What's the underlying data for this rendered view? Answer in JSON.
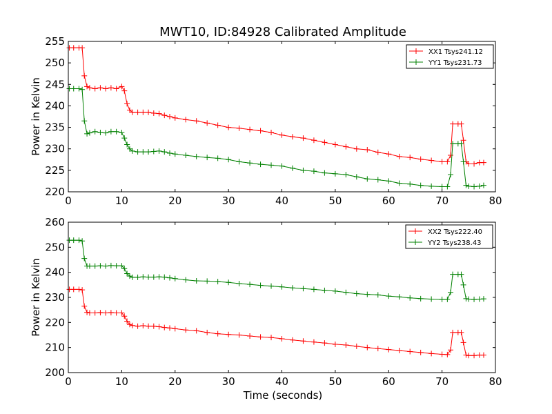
{
  "chart_data": [
    {
      "type": "line",
      "title": "MWT10, ID:84928 Calibrated Amplitude",
      "xlabel": "",
      "ylabel": "Power in Kelvin",
      "xlim": [
        0,
        80
      ],
      "ylim": [
        220,
        255
      ],
      "xticks": [
        "0",
        "10",
        "20",
        "30",
        "40",
        "50",
        "60",
        "70",
        "80"
      ],
      "yticks": [
        "220",
        "225",
        "230",
        "235",
        "240",
        "245",
        "250",
        "255"
      ],
      "legend": "top-right",
      "grid": false,
      "series": [
        {
          "name": "XX1 Tsys241.12",
          "color": "#ff0000",
          "marker": "plus",
          "x": [
            0.2,
            1,
            2,
            2.6,
            3,
            3.5,
            4,
            5,
            6,
            7,
            8,
            9,
            10,
            10.5,
            11,
            11.5,
            12,
            13,
            14,
            15,
            16,
            17,
            18,
            19,
            20,
            22,
            24,
            26,
            28,
            30,
            32,
            34,
            36,
            38,
            40,
            42,
            44,
            46,
            48,
            50,
            52,
            54,
            56,
            58,
            60,
            62,
            64,
            66,
            68,
            70,
            71,
            71.6,
            72,
            73,
            73.6,
            74,
            74.5,
            75,
            76,
            77,
            77.8
          ],
          "y": [
            253.5,
            253.5,
            253.5,
            253.5,
            247,
            244.5,
            244.2,
            244,
            244.2,
            244,
            244.2,
            244,
            244.5,
            243.5,
            240.5,
            239,
            238.5,
            238.5,
            238.5,
            238.5,
            238.3,
            238.2,
            237.8,
            237.5,
            237.2,
            236.8,
            236.5,
            236,
            235.5,
            235,
            234.8,
            234.5,
            234.2,
            233.8,
            233.2,
            232.8,
            232.5,
            232,
            231.5,
            231,
            230.5,
            230,
            229.8,
            229.2,
            228.8,
            228.2,
            228,
            227.6,
            227.3,
            227,
            227,
            228.5,
            235.8,
            235.8,
            235.8,
            232,
            227,
            226.5,
            226.5,
            226.8,
            226.8
          ]
        },
        {
          "name": "YY1 Tsys231.73",
          "color": "#008000",
          "marker": "plus",
          "x": [
            0.2,
            1,
            2,
            2.6,
            3,
            3.5,
            4,
            5,
            6,
            7,
            8,
            9,
            10,
            10.5,
            11,
            11.5,
            12,
            13,
            14,
            15,
            16,
            17,
            18,
            19,
            20,
            22,
            24,
            26,
            28,
            30,
            32,
            34,
            36,
            38,
            40,
            42,
            44,
            46,
            48,
            50,
            52,
            54,
            56,
            58,
            60,
            62,
            64,
            66,
            68,
            70,
            71,
            71.6,
            72,
            73,
            73.6,
            74,
            74.5,
            75,
            76,
            77,
            77.8
          ],
          "y": [
            244,
            244,
            244,
            243.8,
            236.5,
            233.5,
            233.7,
            234,
            233.8,
            233.7,
            234,
            234,
            233.8,
            232.5,
            231,
            230,
            229.5,
            229.3,
            229.3,
            229.3,
            229.4,
            229.5,
            229.3,
            229,
            228.8,
            228.5,
            228.2,
            228,
            227.8,
            227.5,
            227,
            226.7,
            226.4,
            226.2,
            226,
            225.5,
            225,
            224.8,
            224.4,
            224.2,
            224,
            223.5,
            223,
            222.8,
            222.5,
            222,
            221.8,
            221.5,
            221.3,
            221.2,
            221.2,
            224,
            231.2,
            231.2,
            231.2,
            227,
            221.5,
            221.3,
            221.2,
            221.3,
            221.5
          ]
        }
      ]
    },
    {
      "type": "line",
      "title": "",
      "xlabel": "Time (seconds)",
      "ylabel": "Power in Kelvin",
      "xlim": [
        0,
        80
      ],
      "ylim": [
        200,
        260
      ],
      "xticks": [
        "0",
        "10",
        "20",
        "30",
        "40",
        "50",
        "60",
        "70",
        "80"
      ],
      "yticks": [
        "200",
        "210",
        "220",
        "230",
        "240",
        "250",
        "260"
      ],
      "legend": "top-right",
      "grid": false,
      "series": [
        {
          "name": "XX2 Tsys222.40",
          "color": "#ff0000",
          "marker": "plus",
          "x": [
            0.2,
            1,
            2,
            2.6,
            3,
            3.5,
            4,
            5,
            6,
            7,
            8,
            9,
            10,
            10.5,
            11,
            11.5,
            12,
            13,
            14,
            15,
            16,
            17,
            18,
            19,
            20,
            22,
            24,
            26,
            28,
            30,
            32,
            34,
            36,
            38,
            40,
            42,
            44,
            46,
            48,
            50,
            52,
            54,
            56,
            58,
            60,
            62,
            64,
            66,
            68,
            70,
            71,
            71.6,
            72,
            73,
            73.6,
            74,
            74.5,
            75,
            76,
            77,
            77.8
          ],
          "y": [
            233.2,
            233.2,
            233.2,
            233,
            226.5,
            224,
            223.8,
            223.8,
            223.9,
            223.8,
            223.9,
            223.8,
            223.8,
            222.5,
            220.5,
            219.2,
            218.8,
            218.5,
            218.7,
            218.5,
            218.5,
            218.3,
            218,
            217.8,
            217.5,
            217,
            216.7,
            216,
            215.5,
            215.2,
            215,
            214.6,
            214.2,
            214,
            213.5,
            213,
            212.6,
            212.2,
            211.8,
            211.3,
            211,
            210.5,
            210,
            209.6,
            209.2,
            208.8,
            208.4,
            208,
            207.6,
            207.3,
            207.2,
            209,
            216,
            216,
            216,
            212,
            207,
            206.8,
            206.8,
            207,
            207
          ]
        },
        {
          "name": "YY2 Tsys238.43",
          "color": "#008000",
          "marker": "plus",
          "x": [
            0.2,
            1,
            2,
            2.6,
            3,
            3.5,
            4,
            5,
            6,
            7,
            8,
            9,
            10,
            10.5,
            11,
            11.5,
            12,
            13,
            14,
            15,
            16,
            17,
            18,
            19,
            20,
            22,
            24,
            26,
            28,
            30,
            32,
            34,
            36,
            38,
            40,
            42,
            44,
            46,
            48,
            50,
            52,
            54,
            56,
            58,
            60,
            62,
            64,
            66,
            68,
            70,
            71,
            71.6,
            72,
            73,
            73.6,
            74,
            74.5,
            75,
            76,
            77,
            77.8
          ],
          "y": [
            252.8,
            252.8,
            252.8,
            252.5,
            245.5,
            242.5,
            242.5,
            242.5,
            242.6,
            242.5,
            242.7,
            242.6,
            242.6,
            241.5,
            239.5,
            238.5,
            238,
            238,
            238.2,
            238.1,
            238.1,
            238.2,
            238.1,
            237.8,
            237.5,
            237,
            236.6,
            236.5,
            236.3,
            236,
            235.5,
            235.2,
            234.8,
            234.5,
            234.2,
            233.8,
            233.5,
            233.2,
            232.8,
            232.5,
            232,
            231.5,
            231.2,
            231,
            230.5,
            230.2,
            229.8,
            229.5,
            229.3,
            229.2,
            229.2,
            232,
            239.2,
            239.2,
            239.2,
            235,
            229.5,
            229.3,
            229.2,
            229.3,
            229.4
          ]
        }
      ]
    }
  ]
}
